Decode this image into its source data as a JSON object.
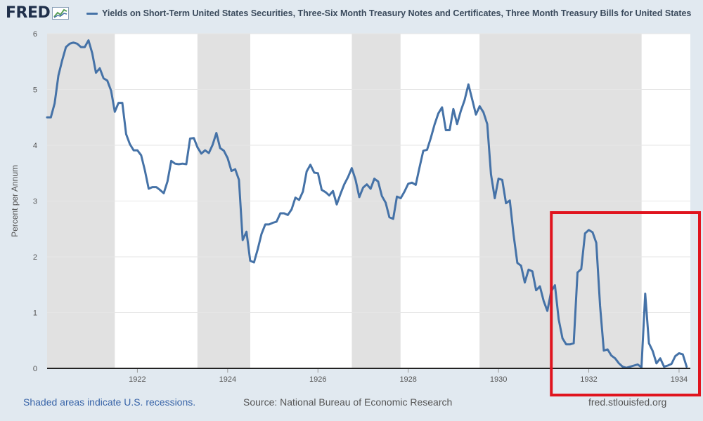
{
  "header": {
    "logo_text": "FRED",
    "legend_label": "Yields on Short-Term United States Securities, Three-Six Month Treasury Notes and Certificates, Three Month Treasury Bills for United States"
  },
  "footer": {
    "recession_note": "Shaded areas indicate U.S. recessions.",
    "source": "Source: National Bureau of Economic Research",
    "site": "fred.stlouisfed.org"
  },
  "colors": {
    "line": "#4572a7",
    "recession": "#e1e1e1",
    "highlight": "#e0141e"
  },
  "chart_data": {
    "type": "line",
    "title": "Yields on Short-Term United States Securities, Three-Six Month Treasury Notes and Certificates, Three Month Treasury Bills for United States",
    "xlabel": "",
    "ylabel": "Percent per Annum",
    "xlim": [
      1920.0,
      1934.25
    ],
    "ylim": [
      0,
      6
    ],
    "x_ticks": [
      1922,
      1924,
      1926,
      1928,
      1930,
      1932,
      1934
    ],
    "y_ticks": [
      0,
      1,
      2,
      3,
      4,
      5,
      6
    ],
    "grid": true,
    "recessions": [
      [
        1920.0,
        1921.5
      ],
      [
        1923.33,
        1924.5
      ],
      [
        1926.75,
        1927.83
      ],
      [
        1929.58,
        1933.17
      ]
    ],
    "highlight_box": [
      1931.17,
      1934.5
    ],
    "series": [
      {
        "name": "Yields on Short-Term United States Securities, Three-Six Month Treasury Notes and Certificates, Three Month Treasury Bills for United States",
        "x": [
          1920.0,
          1920.083,
          1920.167,
          1920.25,
          1920.333,
          1920.417,
          1920.5,
          1920.583,
          1920.667,
          1920.75,
          1920.833,
          1920.917,
          1921.0,
          1921.083,
          1921.167,
          1921.25,
          1921.333,
          1921.417,
          1921.5,
          1921.583,
          1921.667,
          1921.75,
          1921.833,
          1921.917,
          1922.0,
          1922.083,
          1922.167,
          1922.25,
          1922.333,
          1922.417,
          1922.5,
          1922.583,
          1922.667,
          1922.75,
          1922.833,
          1922.917,
          1923.0,
          1923.083,
          1923.167,
          1923.25,
          1923.333,
          1923.417,
          1923.5,
          1923.583,
          1923.667,
          1923.75,
          1923.833,
          1923.917,
          1924.0,
          1924.083,
          1924.167,
          1924.25,
          1924.333,
          1924.417,
          1924.5,
          1924.583,
          1924.667,
          1924.75,
          1924.833,
          1924.917,
          1925.0,
          1925.083,
          1925.167,
          1925.25,
          1925.333,
          1925.417,
          1925.5,
          1925.583,
          1925.667,
          1925.75,
          1925.833,
          1925.917,
          1926.0,
          1926.083,
          1926.167,
          1926.25,
          1926.333,
          1926.417,
          1926.5,
          1926.583,
          1926.667,
          1926.75,
          1926.833,
          1926.917,
          1927.0,
          1927.083,
          1927.167,
          1927.25,
          1927.333,
          1927.417,
          1927.5,
          1927.583,
          1927.667,
          1927.75,
          1927.833,
          1927.917,
          1928.0,
          1928.083,
          1928.167,
          1928.25,
          1928.333,
          1928.417,
          1928.5,
          1928.583,
          1928.667,
          1928.75,
          1928.833,
          1928.917,
          1929.0,
          1929.083,
          1929.167,
          1929.25,
          1929.333,
          1929.417,
          1929.5,
          1929.583,
          1929.667,
          1929.75,
          1929.833,
          1929.917,
          1930.0,
          1930.083,
          1930.167,
          1930.25,
          1930.333,
          1930.417,
          1930.5,
          1930.583,
          1930.667,
          1930.75,
          1930.833,
          1930.917,
          1931.0,
          1931.083,
          1931.167,
          1931.25,
          1931.333,
          1931.417,
          1931.5,
          1931.583,
          1931.667,
          1931.75,
          1931.833,
          1931.917,
          1932.0,
          1932.083,
          1932.167,
          1932.25,
          1932.333,
          1932.417,
          1932.5,
          1932.583,
          1932.667,
          1932.75,
          1932.833,
          1932.917,
          1933.0,
          1933.083,
          1933.167,
          1933.25,
          1933.333,
          1933.417,
          1933.5,
          1933.583,
          1933.667,
          1933.75,
          1933.833,
          1933.917,
          1934.0,
          1934.083,
          1934.167
        ],
        "y": [
          4.5,
          4.5,
          4.75,
          5.25,
          5.52,
          5.76,
          5.82,
          5.84,
          5.82,
          5.76,
          5.76,
          5.88,
          5.65,
          5.3,
          5.38,
          5.2,
          5.16,
          4.98,
          4.6,
          4.76,
          4.76,
          4.2,
          4.02,
          3.91,
          3.91,
          3.82,
          3.55,
          3.22,
          3.25,
          3.25,
          3.2,
          3.14,
          3.35,
          3.72,
          3.67,
          3.66,
          3.67,
          3.66,
          4.12,
          4.13,
          3.96,
          3.85,
          3.91,
          3.86,
          4.01,
          4.22,
          3.95,
          3.9,
          3.77,
          3.54,
          3.57,
          3.38,
          2.3,
          2.45,
          1.93,
          1.9,
          2.14,
          2.41,
          2.58,
          2.58,
          2.61,
          2.63,
          2.78,
          2.78,
          2.75,
          2.85,
          3.06,
          3.02,
          3.17,
          3.53,
          3.65,
          3.51,
          3.5,
          3.2,
          3.16,
          3.1,
          3.18,
          2.94,
          3.13,
          3.3,
          3.43,
          3.59,
          3.38,
          3.07,
          3.24,
          3.3,
          3.22,
          3.4,
          3.35,
          3.09,
          2.97,
          2.71,
          2.68,
          3.08,
          3.05,
          3.17,
          3.31,
          3.33,
          3.29,
          3.6,
          3.9,
          3.92,
          4.13,
          4.37,
          4.57,
          4.68,
          4.27,
          4.27,
          4.65,
          4.38,
          4.62,
          4.81,
          5.09,
          4.82,
          4.55,
          4.7,
          4.59,
          4.38,
          3.48,
          3.05,
          3.4,
          3.38,
          2.96,
          3.01,
          2.4,
          1.89,
          1.84,
          1.54,
          1.77,
          1.74,
          1.4,
          1.47,
          1.21,
          1.03,
          1.38,
          1.49,
          0.88,
          0.54,
          0.43,
          0.43,
          0.45,
          1.72,
          1.78,
          2.42,
          2.48,
          2.44,
          2.25,
          1.12,
          0.32,
          0.34,
          0.23,
          0.18,
          0.09,
          0.03,
          0.01,
          0.03,
          0.05,
          0.07,
          0.02,
          1.34,
          0.45,
          0.31,
          0.09,
          0.18,
          0.03,
          0.05,
          0.08,
          0.22,
          0.27,
          0.25,
          0.03
        ]
      }
    ]
  }
}
